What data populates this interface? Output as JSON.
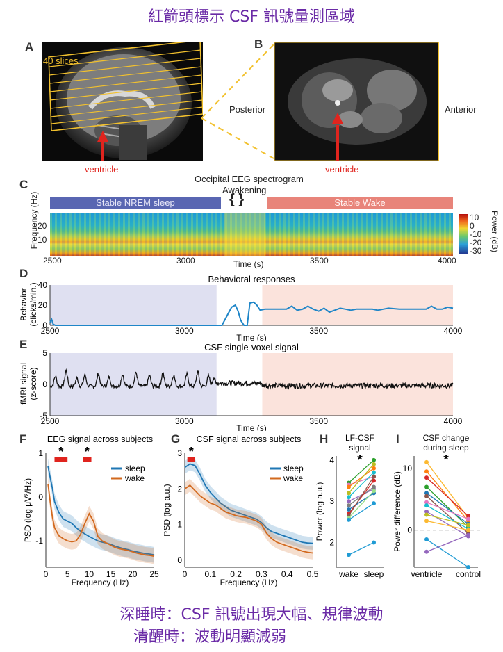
{
  "top_caption": "紅箭頭標示 CSF 訊號量測區域",
  "bottom_caption": [
    "深睡時：CSF 訊號出現大幅、規律波動",
    "清醒時：波動明顯減弱"
  ],
  "panel_labels": [
    "A",
    "B",
    "C",
    "D",
    "E",
    "F",
    "G",
    "H",
    "I"
  ],
  "panel_a": {
    "slices_label": "40 slices",
    "arrow_label": "ventricle"
  },
  "panel_b": {
    "posterior": "Posterior",
    "anterior": "Anterior",
    "arrow_label": "ventricle"
  },
  "panel_c": {
    "title": "Occipital EEG spectrogram",
    "awakening": "Awakening",
    "nrem_label": "Stable NREM sleep",
    "wake_label": "Stable Wake",
    "ylabel": "Frequency (Hz)",
    "yticks": [
      "20",
      "10"
    ],
    "xlabel": "Time (s)",
    "xticks": [
      "2500",
      "3000",
      "3500",
      "4000"
    ],
    "colorbar_label": "Power (dB)",
    "colorbar_ticks": [
      "10",
      "0",
      "-10",
      "-20",
      "-30"
    ]
  },
  "chart_data": [
    {
      "type": "line",
      "panel": "D",
      "title": "Behavioral responses",
      "ylabel": "Behavior (clicks/min.)",
      "xlabel": "Time (s)",
      "xlim": [
        2500,
        4000
      ],
      "ylim": [
        0,
        40
      ],
      "yticks": [
        "40",
        "20",
        "0"
      ],
      "xticks": [
        "2500",
        "3000",
        "3500",
        "4000"
      ],
      "x": [
        2500,
        2506,
        2512,
        2520,
        3000,
        3140,
        3160,
        3176,
        3190,
        3200,
        3210,
        3222,
        3234,
        3244,
        3258,
        3270,
        3282,
        3300,
        3340,
        3380,
        3400,
        3420,
        3440,
        3460,
        3480,
        3500,
        3520,
        3540,
        3560,
        3580,
        3600,
        3620,
        3640,
        3660,
        3680,
        3700,
        3720,
        3740,
        3760,
        3800,
        3840,
        3880,
        3900,
        3920,
        3940,
        3960,
        3980,
        4000
      ],
      "y": [
        3,
        6,
        1,
        0,
        0,
        0,
        10,
        18,
        20,
        14,
        5,
        0,
        0,
        22,
        23,
        20,
        15,
        16,
        16,
        16,
        19,
        15,
        16,
        19,
        16,
        14,
        17,
        13,
        15,
        17,
        16,
        15,
        16,
        16,
        16,
        16,
        15,
        16,
        17,
        16,
        16,
        16,
        16,
        19,
        16,
        16,
        18,
        17
      ]
    },
    {
      "type": "line",
      "panel": "E",
      "title": "CSF single-voxel signal",
      "ylabel": "fMRI signal (z-score)",
      "xlabel": "Time (s)",
      "xlim": [
        2500,
        4000
      ],
      "ylim": [
        -5,
        5
      ],
      "yticks": [
        "5",
        "0",
        "-5"
      ],
      "xticks": [
        "2500",
        "3000",
        "3500",
        "4000"
      ],
      "nrem_end": 3120,
      "wake_start": 3290,
      "sleep_peaks_x": [
        2520,
        2560,
        2600,
        2630,
        2680,
        2720,
        2770,
        2820,
        2870,
        2920,
        2960,
        3010,
        3050,
        3090,
        3110
      ],
      "sleep_peaks_y": [
        1.6,
        2.5,
        1.3,
        1.8,
        2.0,
        1.5,
        1.9,
        2.2,
        1.7,
        2.1,
        1.8,
        1.9,
        2.3,
        1.6,
        1.4
      ],
      "sleep_baseline": -0.3,
      "wake_noise_amplitude": 0.4
    },
    {
      "type": "line",
      "panel": "F",
      "title": "EEG signal across subjects",
      "ylabel": "PSD (log μV²/Hz)",
      "xlabel": "Frequency (Hz)",
      "xlim": [
        0,
        25
      ],
      "ylim": [
        -1.6,
        1
      ],
      "yticks": [
        "1",
        "0",
        "-1"
      ],
      "xticks": [
        "0",
        "5",
        "10",
        "15",
        "20",
        "25"
      ],
      "series": [
        {
          "name": "sleep",
          "color": "#1f77b4",
          "x": [
            0.5,
            1,
            1.5,
            2,
            3,
            4,
            5,
            6,
            7,
            8,
            9,
            10,
            11,
            12,
            13,
            14,
            15,
            16,
            17,
            18,
            19,
            20,
            21,
            22,
            23,
            24,
            25
          ],
          "y": [
            0.7,
            0.45,
            0.2,
            -0.1,
            -0.35,
            -0.5,
            -0.55,
            -0.6,
            -0.7,
            -0.78,
            -0.84,
            -0.9,
            -0.95,
            -1.0,
            -1.03,
            -1.05,
            -1.08,
            -1.12,
            -1.15,
            -1.18,
            -1.2,
            -1.23,
            -1.25,
            -1.27,
            -1.29,
            -1.3,
            -1.32
          ]
        },
        {
          "name": "wake",
          "color": "#d2691e",
          "x": [
            0.5,
            1,
            1.5,
            2,
            3,
            4,
            5,
            6,
            7,
            8,
            9,
            10,
            11,
            12,
            13,
            14,
            15,
            16,
            17,
            18,
            19,
            20,
            21,
            22,
            23,
            24,
            25
          ],
          "y": [
            0.3,
            -0.1,
            -0.45,
            -0.7,
            -0.88,
            -0.95,
            -1.0,
            -1.02,
            -1.0,
            -0.85,
            -0.6,
            -0.38,
            -0.55,
            -0.9,
            -1.0,
            -1.05,
            -1.1,
            -1.15,
            -1.18,
            -1.2,
            -1.22,
            -1.25,
            -1.28,
            -1.3,
            -1.32,
            -1.33,
            -1.35
          ]
        }
      ],
      "significance": "*"
    },
    {
      "type": "line",
      "panel": "G",
      "title": "CSF signal across subjects",
      "ylabel": "PSD (log a.u.)",
      "xlabel": "Frequency (Hz)",
      "xlim": [
        0,
        0.5
      ],
      "ylim": [
        -0.2,
        3
      ],
      "yticks": [
        "3",
        "2",
        "1",
        "0"
      ],
      "xticks": [
        "0",
        "0.1",
        "0.2",
        "0.3",
        "0.4",
        "0.5"
      ],
      "series": [
        {
          "name": "sleep",
          "color": "#1f77b4",
          "x": [
            0,
            0.02,
            0.04,
            0.06,
            0.08,
            0.1,
            0.12,
            0.14,
            0.16,
            0.18,
            0.2,
            0.22,
            0.24,
            0.26,
            0.28,
            0.3,
            0.32,
            0.34,
            0.36,
            0.38,
            0.4,
            0.42,
            0.44,
            0.46,
            0.48,
            0.5
          ],
          "y": [
            2.6,
            2.7,
            2.65,
            2.4,
            2.1,
            1.9,
            1.75,
            1.6,
            1.5,
            1.4,
            1.35,
            1.3,
            1.25,
            1.2,
            1.15,
            1.05,
            0.9,
            0.8,
            0.75,
            0.7,
            0.65,
            0.6,
            0.55,
            0.5,
            0.48,
            0.47
          ]
        },
        {
          "name": "wake",
          "color": "#d2691e",
          "x": [
            0,
            0.02,
            0.04,
            0.06,
            0.08,
            0.1,
            0.12,
            0.14,
            0.16,
            0.18,
            0.2,
            0.22,
            0.24,
            0.26,
            0.28,
            0.3,
            0.32,
            0.34,
            0.36,
            0.38,
            0.4,
            0.42,
            0.44,
            0.46,
            0.48,
            0.5
          ],
          "y": [
            2.0,
            2.1,
            1.95,
            1.8,
            1.7,
            1.6,
            1.55,
            1.45,
            1.35,
            1.3,
            1.25,
            1.22,
            1.2,
            1.15,
            1.1,
            1.0,
            0.75,
            0.6,
            0.5,
            0.45,
            0.4,
            0.35,
            0.3,
            0.25,
            0.22,
            0.2
          ]
        }
      ],
      "significance": "*"
    },
    {
      "type": "scatter",
      "panel": "H",
      "title": "LF-CSF signal",
      "ylabel": "Power (log a.u.)",
      "categories": [
        "wake",
        "sleep"
      ],
      "ylim": [
        1.4,
        4.1
      ],
      "yticks": [
        "4",
        "3",
        "2"
      ],
      "significance": "*",
      "pairs": [
        {
          "wake": 3.45,
          "sleep": 4.0,
          "color": "#2ca02c"
        },
        {
          "wake": 3.4,
          "sleep": 3.6,
          "color": "#e377c2"
        },
        {
          "wake": 3.35,
          "sleep": 3.8,
          "color": "#ff7f0e"
        },
        {
          "wake": 3.2,
          "sleep": 3.9,
          "color": "#bcbd22"
        },
        {
          "wake": 3.1,
          "sleep": 3.7,
          "color": "#17becf"
        },
        {
          "wake": 3.0,
          "sleep": 3.3,
          "color": "#9467bd"
        },
        {
          "wake": 2.9,
          "sleep": 3.35,
          "color": "#7f7f7f"
        },
        {
          "wake": 2.8,
          "sleep": 3.2,
          "color": "#1f77b4"
        },
        {
          "wake": 2.7,
          "sleep": 3.5,
          "color": "#d62728"
        },
        {
          "wake": 2.65,
          "sleep": 3.6,
          "color": "#8c564b"
        },
        {
          "wake": 2.6,
          "sleep": 3.25,
          "color": "#98df8a"
        },
        {
          "wake": 2.55,
          "sleep": 2.95,
          "color": "#1f9bd4"
        },
        {
          "wake": 1.7,
          "sleep": 2.0,
          "color": "#1f9bd4"
        }
      ]
    },
    {
      "type": "scatter",
      "panel": "I",
      "title": "CSF change during sleep",
      "ylabel": "Power difference (dB)",
      "categories": [
        "ventricle",
        "control"
      ],
      "ylim": [
        -6,
        12
      ],
      "yticks": [
        "10",
        "0"
      ],
      "significance": "*",
      "pairs": [
        {
          "ventricle": 11,
          "control": 2,
          "color": "#fcb931"
        },
        {
          "ventricle": 9.5,
          "control": 1.5,
          "color": "#ff7f0e"
        },
        {
          "ventricle": 8.5,
          "control": 2.3,
          "color": "#d62728"
        },
        {
          "ventricle": 7,
          "control": 0.5,
          "color": "#2ca02c"
        },
        {
          "ventricle": 6,
          "control": 1.0,
          "color": "#1f77b4"
        },
        {
          "ventricle": 5.5,
          "control": -0.5,
          "color": "#8c564b"
        },
        {
          "ventricle": 4.5,
          "control": 1.8,
          "color": "#e377c2"
        },
        {
          "ventricle": 4.0,
          "control": 0.2,
          "color": "#17becf"
        },
        {
          "ventricle": 3.0,
          "control": -1.0,
          "color": "#9467bd"
        },
        {
          "ventricle": 2.5,
          "control": 0.8,
          "color": "#bcbd22"
        },
        {
          "ventricle": 1.5,
          "control": 0.0,
          "color": "#fcb931"
        },
        {
          "ventricle": -1.5,
          "control": -6.0,
          "color": "#1f9bd4"
        },
        {
          "ventricle": -3.5,
          "control": -0.8,
          "color": "#9467bd"
        }
      ]
    }
  ],
  "legend_sleep": "sleep",
  "legend_wake": "wake"
}
